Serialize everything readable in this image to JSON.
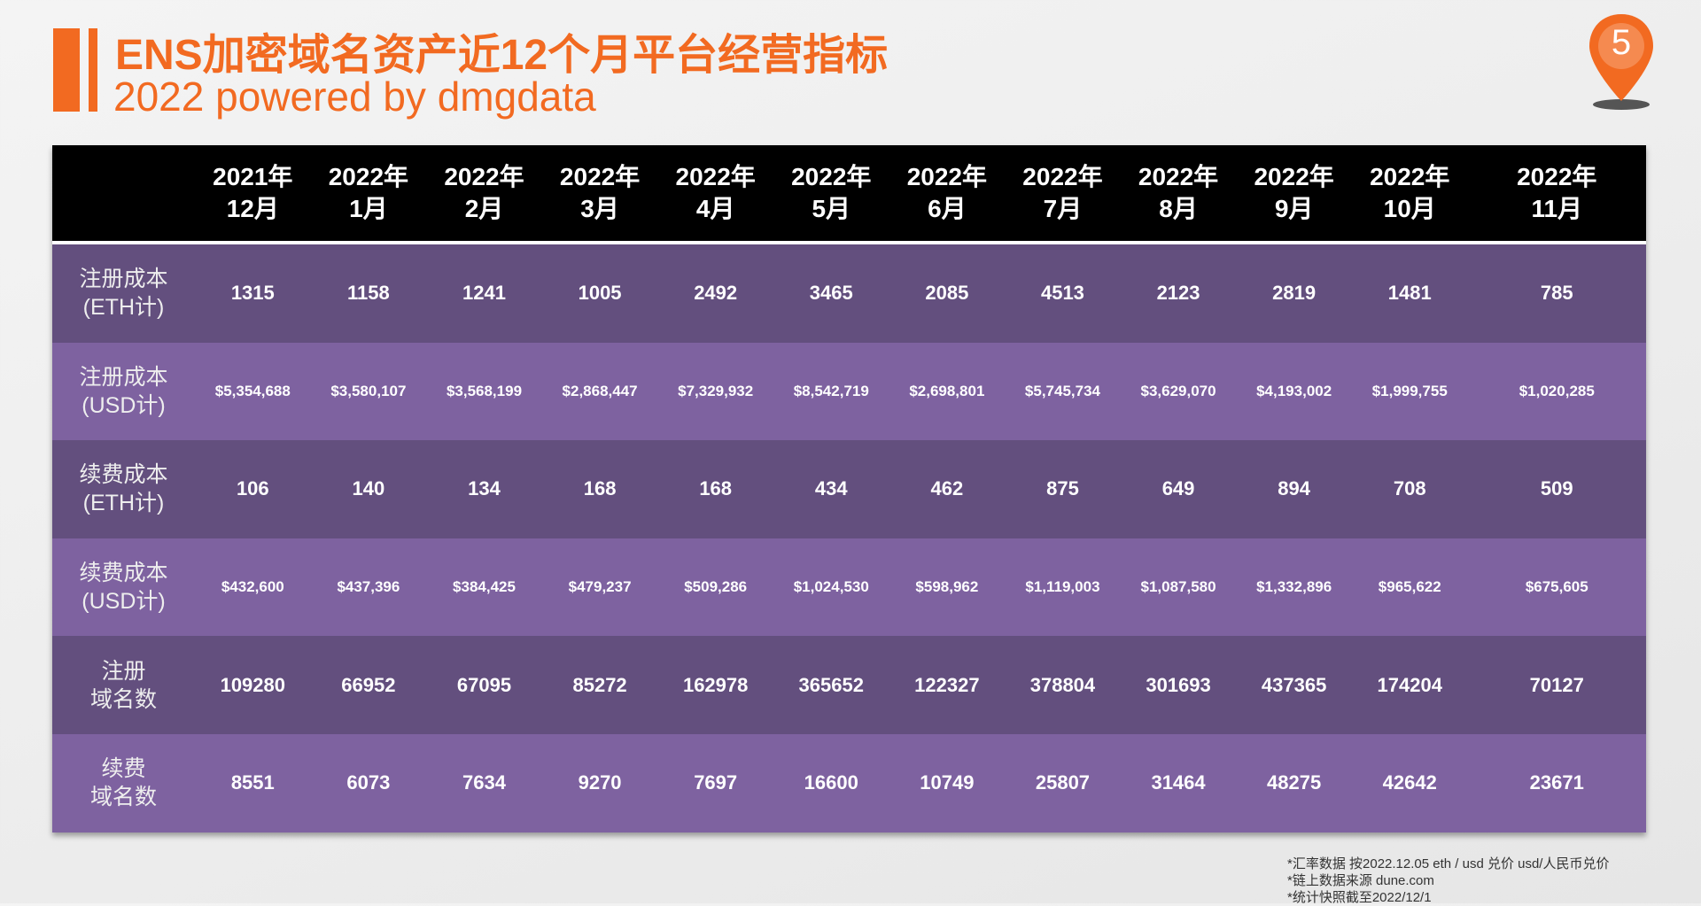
{
  "header": {
    "title": "ENS加密域名资产近12个月平台经营指标",
    "subtitle": "2022 powered by dmgdata",
    "page_number": "5",
    "accent_color": "#f26a21"
  },
  "table": {
    "columns": [
      [
        "2021年",
        "12月"
      ],
      [
        "2022年",
        "1月"
      ],
      [
        "2022年",
        "2月"
      ],
      [
        "2022年",
        "3月"
      ],
      [
        "2022年",
        "4月"
      ],
      [
        "2022年",
        "5月"
      ],
      [
        "2022年",
        "6月"
      ],
      [
        "2022年",
        "7月"
      ],
      [
        "2022年",
        "8月"
      ],
      [
        "2022年",
        "9月"
      ],
      [
        "2022年",
        "10月"
      ],
      [
        "2022年",
        "11月"
      ]
    ],
    "rows": [
      {
        "label": [
          "注册成本",
          "(ETH计)"
        ],
        "usd": false,
        "values": [
          "1315",
          "1158",
          "1241",
          "1005",
          "2492",
          "3465",
          "2085",
          "4513",
          "2123",
          "2819",
          "1481",
          "785"
        ]
      },
      {
        "label": [
          "注册成本",
          "(USD计)"
        ],
        "usd": true,
        "values": [
          "$5,354,688",
          "$3,580,107",
          "$3,568,199",
          "$2,868,447",
          "$7,329,932",
          "$8,542,719",
          "$2,698,801",
          "$5,745,734",
          "$3,629,070",
          "$4,193,002",
          "$1,999,755",
          "$1,020,285"
        ]
      },
      {
        "label": [
          "续费成本",
          "(ETH计)"
        ],
        "usd": false,
        "values": [
          "106",
          "140",
          "134",
          "168",
          "168",
          "434",
          "462",
          "875",
          "649",
          "894",
          "708",
          "509"
        ]
      },
      {
        "label": [
          "续费成本",
          "(USD计)"
        ],
        "usd": true,
        "values": [
          "$432,600",
          "$437,396",
          "$384,425",
          "$479,237",
          "$509,286",
          "$1,024,530",
          "$598,962",
          "$1,119,003",
          "$1,087,580",
          "$1,332,896",
          "$965,622",
          "$675,605"
        ]
      },
      {
        "label": [
          "注册",
          "域名数"
        ],
        "usd": false,
        "values": [
          "109280",
          "66952",
          "67095",
          "85272",
          "162978",
          "365652",
          "122327",
          "378804",
          "301693",
          "437365",
          "174204",
          "70127"
        ]
      },
      {
        "label": [
          "续费",
          "域名数"
        ],
        "usd": false,
        "values": [
          "8551",
          "6073",
          "7634",
          "9270",
          "7697",
          "16600",
          "10749",
          "25807",
          "31464",
          "48275",
          "42642",
          "23671"
        ]
      }
    ]
  },
  "footnotes": [
    "*汇率数据 按2022.12.05 eth / usd 兑价 usd/人民币兑价",
    "*链上数据来源 dune.com",
    "*统计快照截至2022/12/1"
  ]
}
